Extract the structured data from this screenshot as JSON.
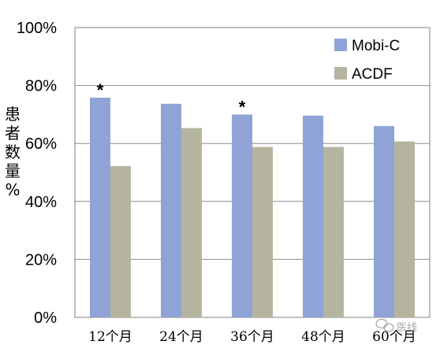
{
  "chart_data": {
    "type": "bar",
    "categories": [
      "12个月",
      "24个月",
      "36个月",
      "48个月",
      "60个月"
    ],
    "series": [
      {
        "name": "Mobi-C",
        "values": [
          75.8,
          73.7,
          70.0,
          69.6,
          66.0
        ],
        "color": "#8FA3D6"
      },
      {
        "name": "ACDF",
        "values": [
          52.2,
          65.3,
          58.8,
          58.8,
          60.7
        ],
        "color": "#B5B59F"
      }
    ],
    "ylabel_chars": [
      "患",
      "者",
      "数",
      "量",
      "%"
    ],
    "ylim": [
      0,
      100
    ],
    "yticks": [
      "0%",
      "20%",
      "40%",
      "60%",
      "80%",
      "100%"
    ],
    "grid": true,
    "legend": "top-right",
    "annotations": [
      {
        "text": "*",
        "series": 0,
        "category": 0
      },
      {
        "text": "*",
        "series": 0,
        "category": 2
      }
    ]
  },
  "watermark": {
    "text": "医线",
    "icon": "wechat-icon"
  }
}
